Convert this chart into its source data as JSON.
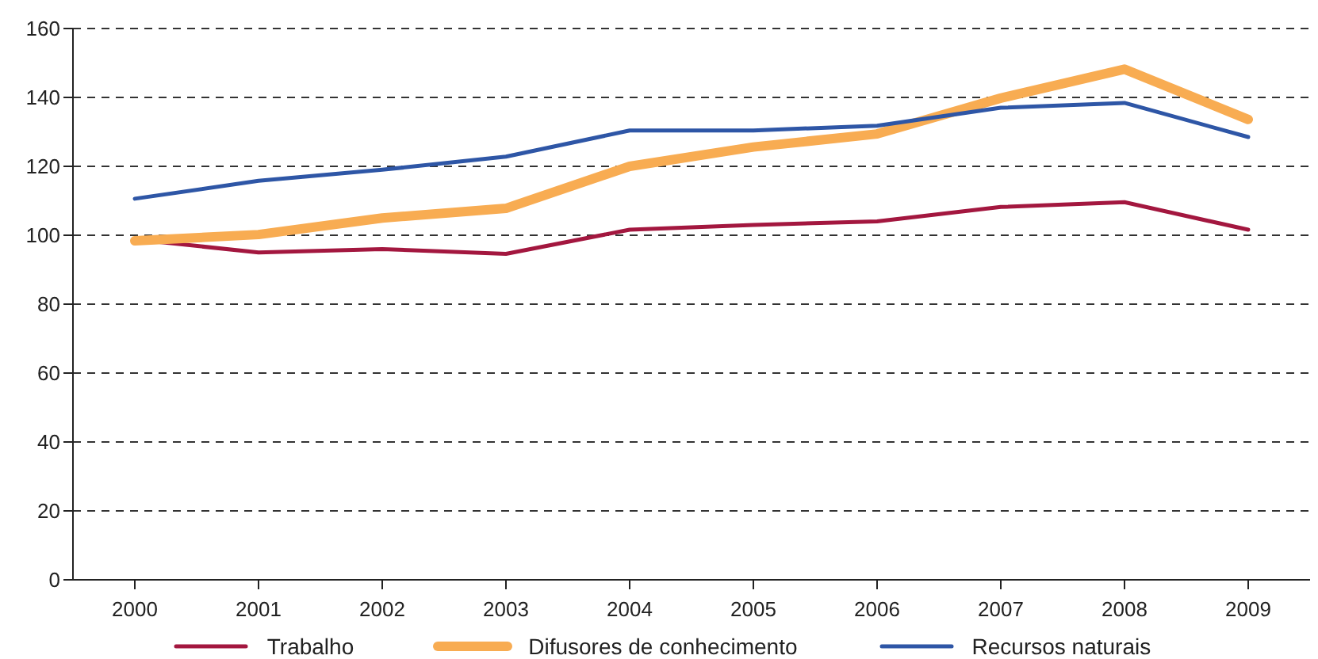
{
  "chart_data": {
    "type": "line",
    "categories": [
      "2000",
      "2001",
      "2002",
      "2003",
      "2004",
      "2005",
      "2006",
      "2007",
      "2008",
      "2009"
    ],
    "series": [
      {
        "name": "Trabalho",
        "color": "#a3173f",
        "values": [
          98.8,
          95,
          96,
          94.6,
          101.6,
          103,
          104,
          108.2,
          109.6,
          101.6
        ]
      },
      {
        "name": "Difusores de conhecimento",
        "color": "#f8ac52",
        "values": [
          98.4,
          100.2,
          105,
          107.8,
          120,
          125.6,
          129.4,
          139.8,
          148.2,
          133.6
        ]
      },
      {
        "name": "Recursos naturais",
        "color": "#2e56a6",
        "values": [
          110.6,
          115.8,
          119,
          122.8,
          130.4,
          130.4,
          131.8,
          137,
          138.4,
          128.5
        ]
      }
    ],
    "ylim": [
      0,
      160
    ],
    "yticks": [
      0,
      20,
      40,
      60,
      80,
      100,
      120,
      140,
      160
    ],
    "grid": "y",
    "legend": "bottom",
    "marker": "none",
    "line_style": "solid"
  }
}
